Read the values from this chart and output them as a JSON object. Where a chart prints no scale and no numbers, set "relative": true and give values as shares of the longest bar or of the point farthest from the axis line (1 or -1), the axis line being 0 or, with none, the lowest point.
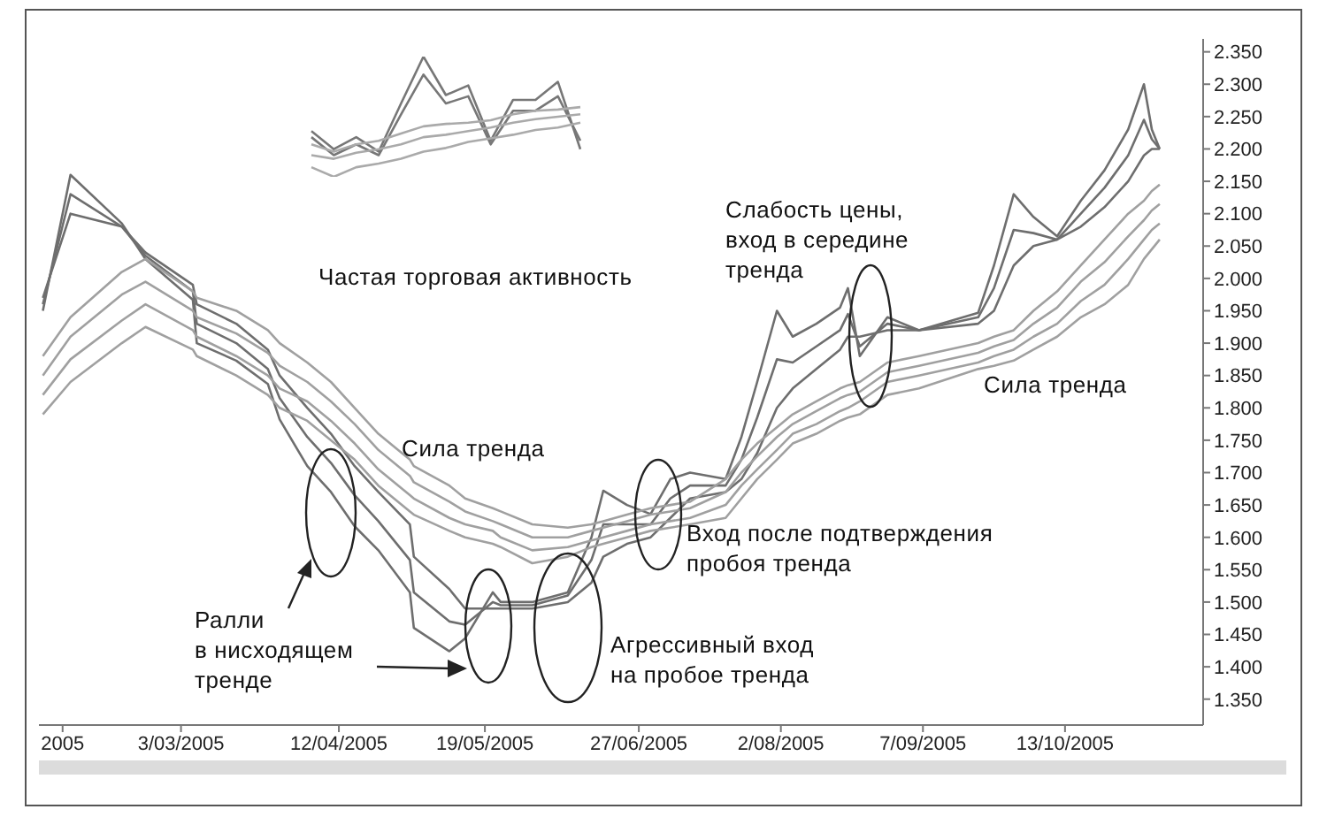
{
  "chart_data": [
    {
      "type": "line",
      "marker": "none",
      "line_style": "solid",
      "x": [
        "2005-01-27",
        "2005-02-03",
        "2005-02-16",
        "2005-02-22",
        "2005-03-06",
        "2005-03-07",
        "2005-03-17",
        "2005-03-25",
        "2005-03-28",
        "2005-04-04",
        "2005-04-10",
        "2005-04-16",
        "2005-04-22",
        "2005-04-30",
        "2005-05-01",
        "2005-05-10",
        "2005-05-14",
        "2005-05-21",
        "2005-05-23",
        "2005-05-31",
        "2005-06-09",
        "2005-06-15",
        "2005-06-18",
        "2005-06-24",
        "2005-06-30",
        "2005-07-05",
        "2005-07-10",
        "2005-07-19",
        "2005-07-23",
        "2005-07-27",
        "2005-08-01",
        "2005-08-05",
        "2005-08-11",
        "2005-08-17",
        "2005-08-19",
        "2005-08-22",
        "2005-08-29",
        "2005-09-06",
        "2005-09-21",
        "2005-09-25",
        "2005-09-30",
        "2005-10-05",
        "2005-10-11",
        "2005-10-17",
        "2005-10-23",
        "2005-10-29",
        "2005-11-02",
        "2005-11-04",
        "2005-11-06"
      ],
      "series": [
        {
          "color": "#6e6e6e",
          "values": [
            1.95,
            2.16,
            2.085,
            2.03,
            1.967,
            1.9,
            1.873,
            1.837,
            1.782,
            1.71,
            1.67,
            1.617,
            1.58,
            1.515,
            1.46,
            1.424,
            1.444,
            1.515,
            1.5,
            1.5,
            1.515,
            1.6,
            1.672,
            1.65,
            1.636,
            1.69,
            1.7,
            1.69,
            1.755,
            1.84,
            1.95,
            1.91,
            1.93,
            1.955,
            1.985,
            1.88,
            1.94,
            1.92,
            1.947,
            2.02,
            2.13,
            2.095,
            2.065,
            2.12,
            2.167,
            2.23,
            2.3,
            2.23,
            2.2
          ]
        },
        {
          "color": "#6e6e6e",
          "values": [
            1.96,
            2.13,
            2.08,
            2.035,
            1.98,
            1.93,
            1.9,
            1.86,
            1.815,
            1.755,
            1.715,
            1.665,
            1.625,
            1.565,
            1.515,
            1.47,
            1.465,
            1.5,
            1.495,
            1.495,
            1.51,
            1.565,
            1.62,
            1.62,
            1.62,
            1.66,
            1.68,
            1.68,
            1.72,
            1.785,
            1.875,
            1.87,
            1.895,
            1.92,
            1.945,
            1.895,
            1.93,
            1.92,
            1.94,
            1.985,
            2.075,
            2.07,
            2.06,
            2.1,
            2.14,
            2.19,
            2.245,
            2.215,
            2.2
          ]
        },
        {
          "color": "#6e6e6e",
          "values": [
            1.97,
            2.1,
            2.08,
            2.04,
            1.99,
            1.96,
            1.93,
            1.89,
            1.85,
            1.8,
            1.76,
            1.71,
            1.67,
            1.62,
            1.57,
            1.52,
            1.49,
            1.49,
            1.49,
            1.49,
            1.5,
            1.53,
            1.57,
            1.59,
            1.6,
            1.63,
            1.66,
            1.67,
            1.69,
            1.73,
            1.8,
            1.83,
            1.86,
            1.89,
            1.91,
            1.91,
            1.92,
            1.92,
            1.93,
            1.95,
            2.02,
            2.05,
            2.06,
            2.08,
            2.11,
            2.15,
            2.19,
            2.2,
            2.2
          ]
        },
        {
          "color": "#a0a0a0",
          "values": [
            1.88,
            1.94,
            2.01,
            2.03,
            1.98,
            1.97,
            1.95,
            1.92,
            1.9,
            1.87,
            1.84,
            1.8,
            1.76,
            1.72,
            1.71,
            1.68,
            1.66,
            1.645,
            1.64,
            1.62,
            1.615,
            1.62,
            1.625,
            1.635,
            1.645,
            1.65,
            1.655,
            1.69,
            1.72,
            1.745,
            1.77,
            1.79,
            1.81,
            1.83,
            1.835,
            1.84,
            1.87,
            1.88,
            1.9,
            1.91,
            1.92,
            1.95,
            1.98,
            2.02,
            2.06,
            2.1,
            2.12,
            2.135,
            2.145
          ]
        },
        {
          "color": "#a0a0a0",
          "values": [
            1.85,
            1.91,
            1.975,
            1.995,
            1.95,
            1.94,
            1.915,
            1.885,
            1.865,
            1.84,
            1.81,
            1.775,
            1.735,
            1.695,
            1.685,
            1.655,
            1.64,
            1.625,
            1.62,
            1.6,
            1.6,
            1.61,
            1.615,
            1.625,
            1.635,
            1.64,
            1.645,
            1.67,
            1.7,
            1.725,
            1.755,
            1.775,
            1.795,
            1.815,
            1.82,
            1.825,
            1.855,
            1.865,
            1.885,
            1.895,
            1.905,
            1.93,
            1.955,
            1.995,
            2.025,
            2.065,
            2.09,
            2.105,
            2.115
          ]
        },
        {
          "color": "#a0a0a0",
          "values": [
            1.82,
            1.875,
            1.935,
            1.96,
            1.92,
            1.91,
            1.88,
            1.85,
            1.83,
            1.81,
            1.78,
            1.745,
            1.705,
            1.665,
            1.66,
            1.63,
            1.62,
            1.61,
            1.6,
            1.58,
            1.585,
            1.595,
            1.6,
            1.61,
            1.62,
            1.625,
            1.63,
            1.65,
            1.68,
            1.705,
            1.735,
            1.76,
            1.775,
            1.795,
            1.8,
            1.81,
            1.84,
            1.85,
            1.87,
            1.88,
            1.89,
            1.91,
            1.93,
            1.965,
            1.99,
            2.03,
            2.06,
            2.075,
            2.085
          ]
        },
        {
          "color": "#a0a0a0",
          "values": [
            1.79,
            1.84,
            1.9,
            1.925,
            1.89,
            1.88,
            1.85,
            1.82,
            1.8,
            1.78,
            1.75,
            1.72,
            1.68,
            1.64,
            1.635,
            1.61,
            1.6,
            1.59,
            1.585,
            1.56,
            1.57,
            1.585,
            1.59,
            1.6,
            1.61,
            1.615,
            1.62,
            1.63,
            1.66,
            1.69,
            1.72,
            1.745,
            1.76,
            1.78,
            1.785,
            1.79,
            1.82,
            1.83,
            1.86,
            1.865,
            1.873,
            1.89,
            1.91,
            1.94,
            1.96,
            1.99,
            2.03,
            2.045,
            2.06
          ]
        }
      ],
      "xlim": [
        "2005-01-26",
        "2005-11-17"
      ],
      "xticks": [
        {
          "value": "2005-02-01",
          "label": "2005"
        },
        {
          "value": "2005-03-03",
          "label": "3/03/2005"
        },
        {
          "value": "2005-04-12",
          "label": "12/04/2005"
        },
        {
          "value": "2005-05-19",
          "label": "19/05/2005"
        },
        {
          "value": "2005-06-27",
          "label": "27/06/2005"
        },
        {
          "value": "2005-08-02",
          "label": "2/08/2005"
        },
        {
          "value": "2005-09-07",
          "label": "7/09/2005"
        },
        {
          "value": "2005-10-13",
          "label": "13/10/2005"
        }
      ],
      "ylim": [
        1.31,
        2.37
      ],
      "yticks": [
        {
          "value": 1.35,
          "label": "1.350"
        },
        {
          "value": 1.4,
          "label": "1.400"
        },
        {
          "value": 1.45,
          "label": "1.450"
        },
        {
          "value": 1.5,
          "label": "1.500"
        },
        {
          "value": 1.55,
          "label": "1.550"
        },
        {
          "value": 1.6,
          "label": "1.600"
        },
        {
          "value": 1.65,
          "label": "1.650"
        },
        {
          "value": 1.7,
          "label": "1.700"
        },
        {
          "value": 1.75,
          "label": "1.750"
        },
        {
          "value": 1.8,
          "label": "1.800"
        },
        {
          "value": 1.85,
          "label": "1.850"
        },
        {
          "value": 1.9,
          "label": "1.900"
        },
        {
          "value": 1.95,
          "label": "1.950"
        },
        {
          "value": 2.0,
          "label": "2.000"
        },
        {
          "value": 2.05,
          "label": "2.050"
        },
        {
          "value": 2.1,
          "label": "2.100"
        },
        {
          "value": 2.15,
          "label": "2.150"
        },
        {
          "value": 2.2,
          "label": "2.200"
        },
        {
          "value": 2.25,
          "label": "2.250"
        },
        {
          "value": 2.3,
          "label": "2.300"
        },
        {
          "value": 2.35,
          "label": "2.350"
        }
      ],
      "annotations": [
        "Слабость цены,\nвход в середине\nтренда",
        "Сила тренда",
        "Сила тренда",
        "Вход после подтверждения\nпробоя тренда",
        "Агрессивный вход\nна пробое тренда",
        "Ралли\nв нисходящем\nтренде"
      ]
    },
    {
      "type": "line",
      "relative": true,
      "marker": "none",
      "line_style": "solid",
      "categories": [
        null,
        null,
        null,
        null,
        null,
        null,
        null,
        null,
        null,
        null,
        null,
        null,
        null
      ],
      "series": [
        {
          "color": "#777777",
          "values": [
            0.38,
            0.23,
            0.33,
            0.21,
            0.61,
            1,
            0.68,
            0.76,
            0.3,
            0.64,
            0.64,
            0.79,
            0.23
          ]
        },
        {
          "color": "#777777",
          "values": [
            0.33,
            0.18,
            0.27,
            0.18,
            0.52,
            0.85,
            0.61,
            0.67,
            0.27,
            0.55,
            0.55,
            0.67,
            0.3
          ]
        },
        {
          "color": "#aaaaaa",
          "values": [
            0.27,
            0.21,
            0.27,
            0.3,
            0.36,
            0.42,
            0.44,
            0.45,
            0.47,
            0.52,
            0.55,
            0.56,
            0.58
          ]
        },
        {
          "color": "#aaaaaa",
          "values": [
            0.18,
            0.15,
            0.2,
            0.23,
            0.27,
            0.33,
            0.35,
            0.38,
            0.41,
            0.45,
            0.48,
            0.5,
            0.52
          ]
        },
        {
          "color": "#aaaaaa",
          "values": [
            0.08,
            0,
            0.08,
            0.11,
            0.15,
            0.21,
            0.24,
            0.29,
            0.32,
            0.35,
            0.39,
            0.41,
            0.45
          ]
        }
      ],
      "annotations": [
        "Частая торговая активность"
      ]
    }
  ]
}
